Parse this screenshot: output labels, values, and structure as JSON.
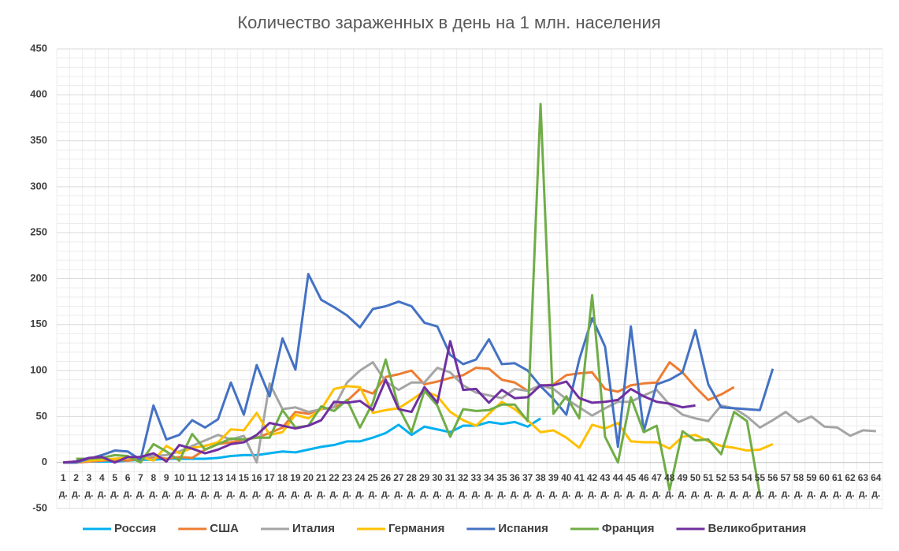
{
  "chart_data": {
    "type": "line",
    "title": "Количество зараженных в день на 1 млн. населения",
    "categories": [
      "1 д.",
      "2 д.",
      "3 д.",
      "4 д.",
      "5 д.",
      "6 д.",
      "7 д.",
      "8 д.",
      "9 д.",
      "10 д.",
      "11 д.",
      "12 д.",
      "13 д.",
      "14 д.",
      "15 д.",
      "16 д.",
      "17 д.",
      "18 д.",
      "19 д.",
      "20 д.",
      "21 д.",
      "22 д.",
      "23 д.",
      "24 д.",
      "25 д.",
      "26 д.",
      "27 д.",
      "28 д.",
      "29 д.",
      "30 д.",
      "31 д.",
      "32 д.",
      "33 д.",
      "34 д.",
      "35 д.",
      "36 д.",
      "37 д.",
      "38 д.",
      "39 д.",
      "40 д.",
      "41 д.",
      "42 д.",
      "43 д.",
      "44 д.",
      "45 д.",
      "46 д.",
      "47 д.",
      "48 д.",
      "49 д.",
      "50 д.",
      "51 д.",
      "52 д.",
      "53 д.",
      "54 д.",
      "55 д.",
      "56 д.",
      "57 д.",
      "58 д.",
      "59 д.",
      "60 д.",
      "61 д.",
      "62 д.",
      "63 д.",
      "64 д."
    ],
    "ylim": [
      -50,
      450
    ],
    "yticks": [
      -50,
      0,
      50,
      100,
      150,
      200,
      250,
      300,
      350,
      400,
      450
    ],
    "grid": true,
    "series": [
      {
        "name": "Россия",
        "color": "#00b0f0",
        "values": [
          0,
          0,
          1,
          1,
          1,
          2,
          3,
          3,
          4,
          4,
          4,
          4,
          5,
          7,
          8,
          8,
          10,
          12,
          11,
          14,
          17,
          19,
          23,
          23,
          27,
          32,
          41,
          30,
          39,
          36,
          33,
          40,
          40,
          44,
          42,
          44,
          39,
          48,
          null,
          null,
          null,
          null,
          null,
          null,
          null,
          null,
          null,
          null,
          null,
          null,
          null,
          null,
          null,
          null,
          null,
          null,
          null,
          null,
          null,
          null,
          null,
          null,
          null,
          null
        ]
      },
      {
        "name": "США",
        "color": "#ed7d31",
        "values": [
          0,
          0,
          1,
          2,
          3,
          2,
          4,
          6,
          4,
          6,
          5,
          14,
          20,
          22,
          25,
          27,
          32,
          38,
          55,
          53,
          58,
          60,
          67,
          80,
          75,
          93,
          96,
          100,
          85,
          88,
          92,
          95,
          103,
          102,
          90,
          87,
          78,
          83,
          85,
          95,
          97,
          98,
          80,
          77,
          84,
          86,
          87,
          109,
          98,
          82,
          68,
          74,
          82,
          null,
          null,
          null,
          null,
          null,
          null,
          null,
          null,
          null,
          null,
          null
        ]
      },
      {
        "name": "Италия",
        "color": "#a5a5a5",
        "values": [
          0,
          1,
          2,
          3,
          4,
          5,
          6,
          7,
          8,
          12,
          18,
          24,
          30,
          25,
          29,
          0,
          86,
          58,
          60,
          55,
          58,
          60,
          87,
          100,
          109,
          88,
          79,
          87,
          87,
          103,
          98,
          84,
          76,
          73,
          70,
          80,
          78,
          84,
          80,
          69,
          60,
          51,
          59,
          66,
          66,
          73,
          79,
          63,
          52,
          48,
          45,
          62,
          59,
          50,
          38,
          46,
          55,
          44,
          50,
          39,
          38,
          29,
          35,
          34
        ]
      },
      {
        "name": "Германия",
        "color": "#ffc000",
        "values": [
          0,
          1,
          2,
          3,
          4,
          5,
          6,
          2,
          18,
          10,
          16,
          18,
          22,
          36,
          35,
          54,
          30,
          33,
          52,
          48,
          58,
          80,
          83,
          82,
          54,
          57,
          59,
          68,
          78,
          72,
          55,
          46,
          40,
          53,
          66,
          58,
          46,
          33,
          35,
          27,
          16,
          41,
          37,
          43,
          23,
          22,
          22,
          15,
          28,
          30,
          23,
          18,
          16,
          13,
          14,
          20,
          null,
          null,
          null,
          null,
          null,
          null,
          null,
          null
        ]
      },
      {
        "name": "Испания",
        "color": "#4472c4",
        "values": [
          0,
          0,
          4,
          8,
          13,
          12,
          3,
          62,
          25,
          30,
          46,
          38,
          47,
          87,
          52,
          106,
          72,
          135,
          101,
          205,
          177,
          169,
          160,
          147,
          167,
          170,
          175,
          170,
          152,
          148,
          117,
          107,
          112,
          134,
          107,
          108,
          100,
          83,
          69,
          52,
          112,
          157,
          126,
          17,
          148,
          34,
          85,
          90,
          98,
          144,
          85,
          60,
          59,
          58,
          57,
          102,
          null,
          null,
          null,
          null,
          null,
          null,
          null,
          null
        ]
      },
      {
        "name": "Франция",
        "color": "#70ad47",
        "values": [
          null,
          4,
          4,
          5,
          8,
          7,
          0,
          20,
          12,
          2,
          31,
          14,
          20,
          26,
          25,
          27,
          27,
          57,
          38,
          40,
          61,
          56,
          68,
          38,
          65,
          112,
          60,
          33,
          78,
          62,
          28,
          58,
          56,
          57,
          63,
          63,
          45,
          390,
          53,
          72,
          48,
          182,
          28,
          0,
          71,
          33,
          40,
          -30,
          34,
          24,
          25,
          9,
          55,
          45,
          -35,
          null,
          null,
          null,
          null,
          null,
          null,
          null,
          null,
          null
        ]
      },
      {
        "name": "Великобритания",
        "color": "#7030a0",
        "values": [
          0,
          1,
          5,
          6,
          0,
          6,
          6,
          10,
          1,
          19,
          15,
          10,
          14,
          20,
          22,
          30,
          43,
          40,
          37,
          40,
          46,
          66,
          65,
          67,
          57,
          90,
          58,
          55,
          82,
          65,
          132,
          79,
          80,
          65,
          79,
          70,
          71,
          84,
          84,
          88,
          70,
          65,
          66,
          68,
          80,
          72,
          66,
          64,
          60,
          62,
          null,
          null,
          null,
          null,
          null,
          null,
          null,
          null,
          null,
          null,
          null,
          null,
          null,
          null
        ]
      }
    ]
  }
}
